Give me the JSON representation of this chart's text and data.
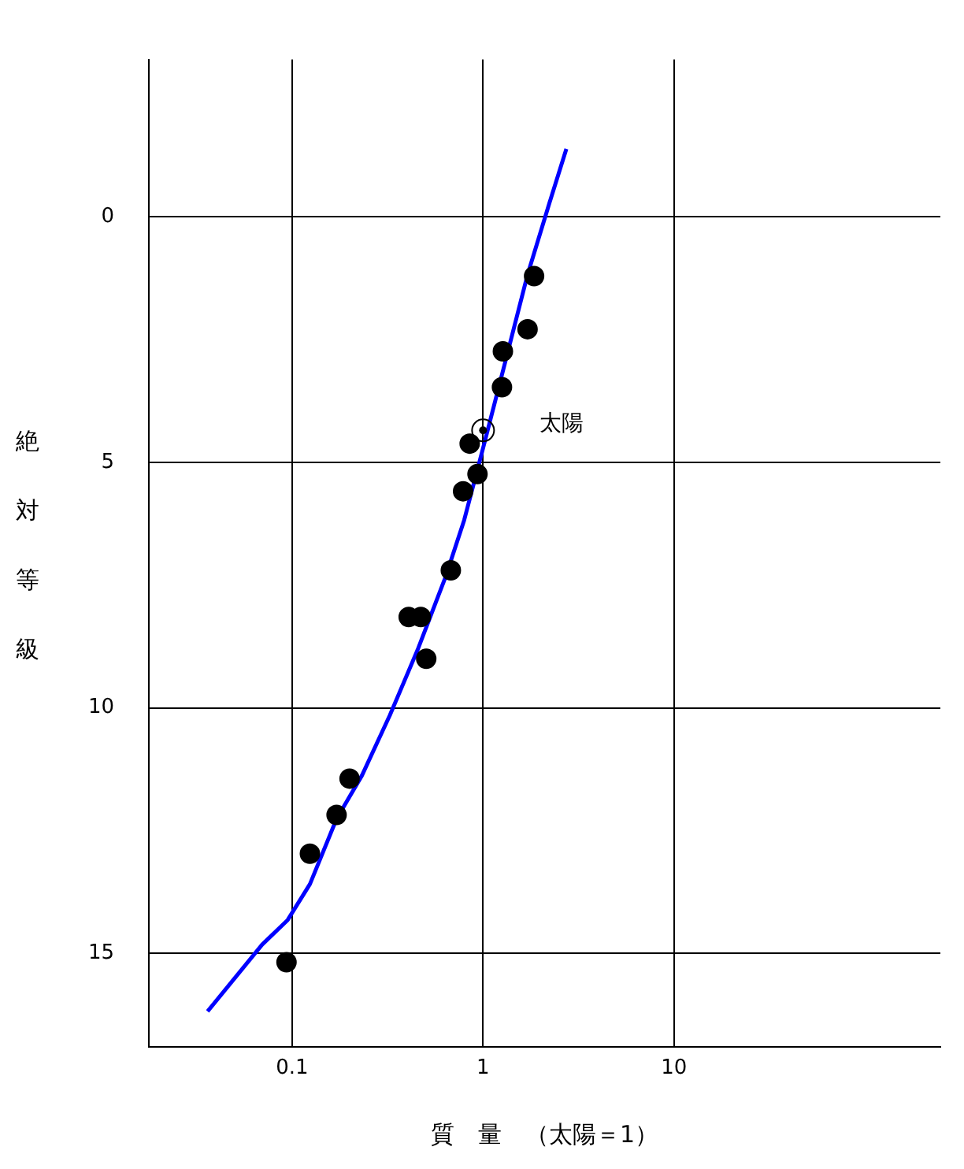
{
  "chart_data": {
    "type": "scatter",
    "xlabel": "質　量　（太陽＝1）",
    "ylabel": "絶対等級",
    "log": "x",
    "grid": true,
    "legend": false,
    "xlim": [
      0.0178,
      248
    ],
    "xticks": [
      {
        "value": 0.1,
        "label": "0.1"
      },
      1,
      10
    ],
    "ylim": [
      16.9,
      -3.2
    ],
    "yticks": [
      0,
      5,
      10,
      15
    ],
    "series": [
      {
        "type": "scatter",
        "marker": "circle",
        "color": "#000000",
        "x": [
          0.0935,
          0.124,
          0.171,
          0.2,
          0.408,
          0.472,
          0.504,
          0.678,
          0.786,
          0.851,
          0.935,
          1.256,
          1.27,
          1.71,
          1.85
        ],
        "values": [
          15.18,
          12.97,
          12.18,
          11.44,
          8.15,
          8.15,
          9.0,
          7.2,
          5.59,
          4.62,
          5.24,
          3.47,
          2.74,
          2.29,
          1.21
        ]
      },
      {
        "type": "line",
        "marker": "none",
        "color": "#0000ff",
        "x": [
          0.0361,
          0.0697,
          0.0948,
          0.124,
          0.171,
          0.232,
          0.325,
          0.454,
          0.634,
          0.796,
          1,
          1.31,
          1.71,
          2.23,
          2.73
        ],
        "values": [
          16.18,
          14.82,
          14.32,
          13.59,
          12.26,
          11.38,
          10.15,
          8.82,
          7.35,
          6.18,
          4.71,
          2.94,
          1.18,
          -0.29,
          -1.38
        ]
      }
    ],
    "annotations": [
      {
        "text": "太陽",
        "x": 1,
        "y": 4.35
      }
    ]
  }
}
